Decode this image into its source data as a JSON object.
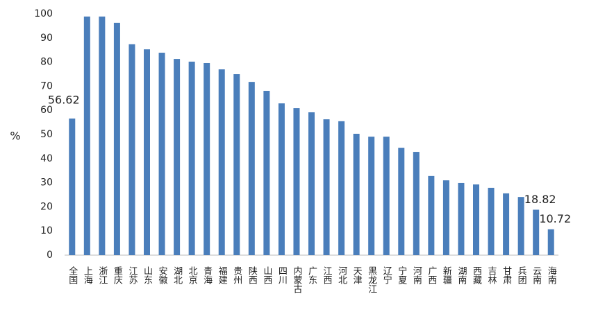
{
  "chart_data": {
    "type": "bar",
    "y_label": "%",
    "categories": [
      "全国",
      "上海",
      "浙江",
      "重庆",
      "江苏",
      "山东",
      "安徽",
      "湖北",
      "北京",
      "青海",
      "福建",
      "贵州",
      "陕西",
      "山西",
      "四川",
      "内蒙古",
      "广东",
      "江西",
      "河北",
      "天津",
      "黑龙江",
      "辽宁",
      "宁夏",
      "河南",
      "广西",
      "新疆",
      "湖南",
      "西藏",
      "吉林",
      "甘肃",
      "兵团",
      "云南",
      "海南"
    ],
    "values": [
      56.62,
      98.9,
      98.9,
      96.3,
      87.4,
      85.3,
      83.9,
      81.3,
      80.2,
      79.6,
      77,
      75,
      71.8,
      68.1,
      62.9,
      60.9,
      59.2,
      56.3,
      55.5,
      50.3,
      49.1,
      49.1,
      44.5,
      42.8,
      32.8,
      31,
      29.9,
      29.3,
      27.9,
      25.6,
      24.1,
      18.82,
      10.72
    ],
    "value_labels": [
      "56.62",
      null,
      null,
      null,
      null,
      null,
      null,
      null,
      null,
      null,
      null,
      null,
      null,
      null,
      null,
      null,
      null,
      null,
      null,
      null,
      null,
      null,
      null,
      null,
      null,
      null,
      null,
      null,
      null,
      null,
      null,
      "18.82",
      "10.72"
    ],
    "color": "#4a7ebb",
    "ylim": [
      0,
      100
    ],
    "yticks": [
      0,
      10,
      20,
      30,
      40,
      50,
      60,
      70,
      80,
      90,
      100
    ],
    "grid": false
  }
}
